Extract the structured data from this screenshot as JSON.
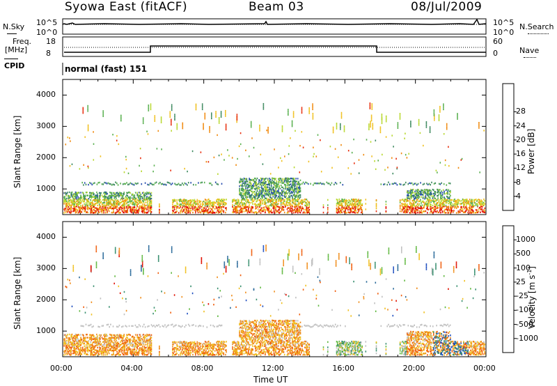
{
  "header": {
    "station": "Syowa East (fitACF)",
    "beam": "Beam 03",
    "date": "08/Jul/2009"
  },
  "top_panels": {
    "nsky_label": "N.Sky",
    "nsky_ticks": [
      "10^5",
      "10^0"
    ],
    "nsearch_label": "N.Search",
    "nsearch_ticks": [
      "10^5",
      "10^0"
    ],
    "freq_label": "Freq.",
    "freq_unit": "[MHz]",
    "freq_ticks": [
      "18",
      "8"
    ],
    "nave_label": "Nave",
    "nave_ticks": [
      "60",
      "0"
    ],
    "cpid_label": "CPID",
    "cpid_text": "normal (fast) 151"
  },
  "chart_data": [
    {
      "type": "heatmap",
      "parameter": "power",
      "ylabel": "Slant Range [km]",
      "xlabel": "",
      "ylim": [
        180,
        4500
      ],
      "yticks": [
        "1000",
        "2000",
        "3000",
        "4000"
      ],
      "xlim": [
        0,
        24
      ],
      "colorbar_label": "Power [dB]",
      "colorbar_ticks": [
        "4",
        "8",
        "12",
        "16",
        "20",
        "24",
        "28"
      ],
      "colors": [
        "#1a1aff",
        "#2a4fb0",
        "#3f8a60",
        "#5ab050",
        "#b8d830",
        "#f0c020",
        "#f08a10",
        "#e83010",
        "#e00000"
      ]
    },
    {
      "type": "heatmap",
      "parameter": "velocity",
      "ylabel": "Slant Range [km]",
      "xlabel": "Time UT",
      "ylim": [
        180,
        4500
      ],
      "yticks": [
        "1000",
        "2000",
        "3000",
        "4000"
      ],
      "xlim": [
        0,
        24
      ],
      "xticks": [
        "00:00",
        "04:00",
        "08:00",
        "12:00",
        "16:00",
        "20:00",
        "00:00"
      ],
      "colorbar_label": "Velocity [m s",
      "colorbar_label_sup": "-1",
      "colorbar_label_end": "]",
      "colorbar_ticks": [
        "1000",
        "500",
        "100",
        "25",
        "-25",
        "-100",
        "-500",
        "-1000"
      ],
      "colors": [
        "#2050c0",
        "#2a6a9a",
        "#3a9070",
        "#60b840",
        "#c0c0c0",
        "#f0c020",
        "#f09020",
        "#f06010",
        "#e01000"
      ]
    }
  ]
}
